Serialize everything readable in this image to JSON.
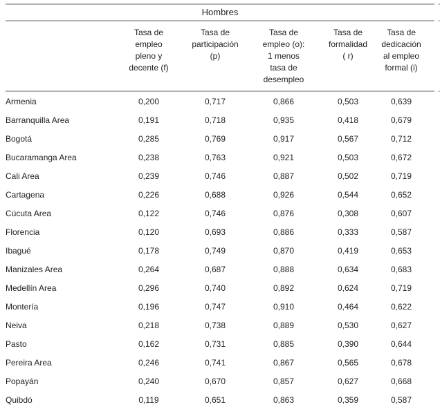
{
  "title": "Hombres",
  "table": {
    "columns": [
      {
        "id": "city",
        "label": ""
      },
      {
        "id": "tasa_empleo_pleno_decente",
        "label": "Tasa de\nempleo\npleno y\ndecente (f)"
      },
      {
        "id": "tasa_participacion",
        "label": "Tasa de\nparticipación\n(p)"
      },
      {
        "id": "tasa_empleo",
        "label": "Tasa de\nempleo (o):\n1 menos\ntasa de\ndesempleo"
      },
      {
        "id": "tasa_formalidad",
        "label": "Tasa de\nformalidad\n( r)"
      },
      {
        "id": "tasa_dedicacion",
        "label": "Tasa de\ndedicación\nal empleo\nformal (i)"
      }
    ],
    "rows": [
      {
        "city": "Armenia",
        "values": [
          "0,200",
          "0,717",
          "0,866",
          "0,503",
          "0,639"
        ]
      },
      {
        "city": "Barranquilla Area",
        "values": [
          "0,191",
          "0,718",
          "0,935",
          "0,418",
          "0,679"
        ]
      },
      {
        "city": "Bogotá",
        "values": [
          "0,285",
          "0,769",
          "0,917",
          "0,567",
          "0,712"
        ]
      },
      {
        "city": "Bucaramanga Area",
        "values": [
          "0,238",
          "0,763",
          "0,921",
          "0,503",
          "0,672"
        ]
      },
      {
        "city": "Cali Area",
        "values": [
          "0,239",
          "0,746",
          "0,887",
          "0,502",
          "0,719"
        ]
      },
      {
        "city": "Cartagena",
        "values": [
          "0,226",
          "0,688",
          "0,926",
          "0,544",
          "0,652"
        ]
      },
      {
        "city": "Cúcuta Area",
        "values": [
          "0,122",
          "0,746",
          "0,876",
          "0,308",
          "0,607"
        ]
      },
      {
        "city": "Florencia",
        "values": [
          "0,120",
          "0,693",
          "0,886",
          "0,333",
          "0,587"
        ]
      },
      {
        "city": "Ibagué",
        "values": [
          "0,178",
          "0,749",
          "0,870",
          "0,419",
          "0,653"
        ]
      },
      {
        "city": "Manizales Area",
        "values": [
          "0,264",
          "0,687",
          "0,888",
          "0,634",
          "0,683"
        ]
      },
      {
        "city": "Medellín Area",
        "values": [
          "0,296",
          "0,740",
          "0,892",
          "0,624",
          "0,719"
        ]
      },
      {
        "city": "Montería",
        "values": [
          "0,196",
          "0,747",
          "0,910",
          "0,464",
          "0,622"
        ]
      },
      {
        "city": "Neiva",
        "values": [
          "0,218",
          "0,738",
          "0,889",
          "0,530",
          "0,627"
        ]
      },
      {
        "city": "Pasto",
        "values": [
          "0,162",
          "0,731",
          "0,885",
          "0,390",
          "0,644"
        ]
      },
      {
        "city": "Pereira Area",
        "values": [
          "0,246",
          "0,741",
          "0,867",
          "0,565",
          "0,678"
        ]
      },
      {
        "city": "Popayán",
        "values": [
          "0,240",
          "0,670",
          "0,857",
          "0,627",
          "0,668"
        ]
      },
      {
        "city": "Quibdó",
        "values": [
          "0,119",
          "0,651",
          "0,863",
          "0,359",
          "0,587"
        ]
      }
    ]
  },
  "colors": {
    "background": "#ffffff",
    "text": "#1f1f1f",
    "rule": "#b1b1b1",
    "rule_edge_sliver": "#c9c9c9"
  }
}
